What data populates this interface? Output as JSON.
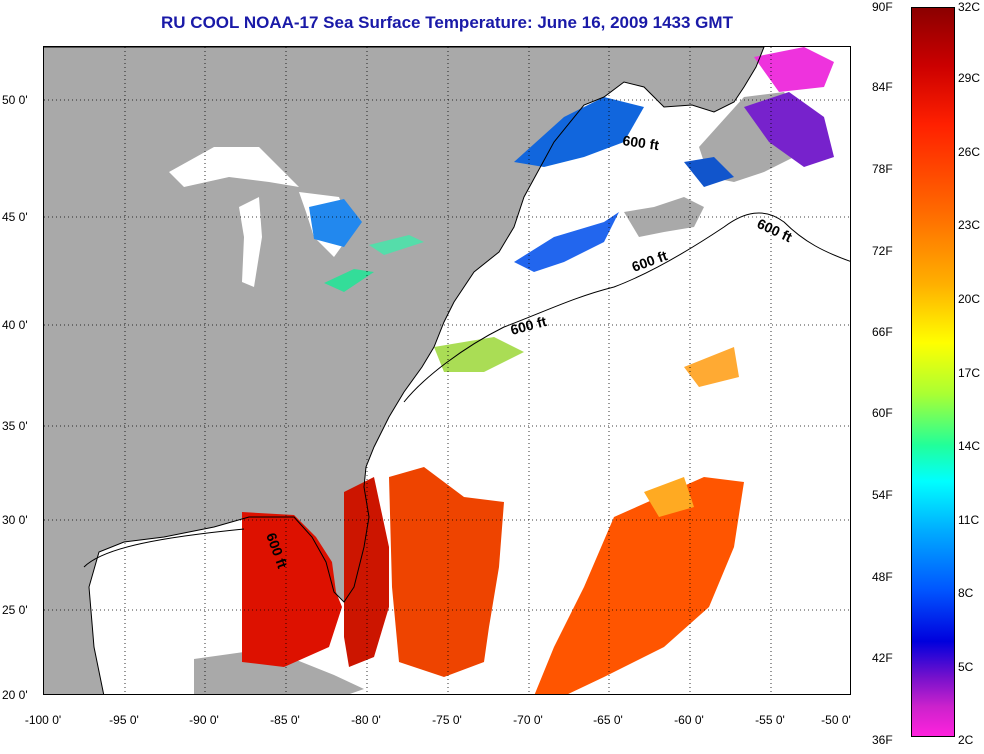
{
  "title": "RU COOL  NOAA-17  Sea Surface Temperature:  June 16, 2009 1433 GMT",
  "lat_labels": [
    "50 0'",
    "45 0'",
    "40 0'",
    "35 0'",
    "30 0'",
    "25 0'",
    "20 0'"
  ],
  "lon_labels": [
    "-100 0'",
    "-95 0'",
    "-90 0'",
    "-85 0'",
    "-80 0'",
    "-75 0'",
    "-70 0'",
    "-65 0'",
    "-60 0'",
    "-55 0'",
    "-50 0'"
  ],
  "contour_labels": [
    "600 ft",
    "600 ft",
    "600 ft",
    "600 ft",
    "600 ft"
  ],
  "colorbar": {
    "fahrenheit": [
      "90F",
      "84F",
      "78F",
      "72F",
      "66F",
      "60F",
      "54F",
      "48F",
      "42F",
      "36F"
    ],
    "celsius": [
      "32C",
      "29C",
      "26C",
      "23C",
      "20C",
      "17C",
      "14C",
      "11C",
      "8C",
      "5C",
      "2C"
    ]
  },
  "colors": {
    "title": "#1a1aa8",
    "land": "#a9a9a9",
    "ocean_no_data": "#ffffff",
    "grid": "#000000"
  }
}
